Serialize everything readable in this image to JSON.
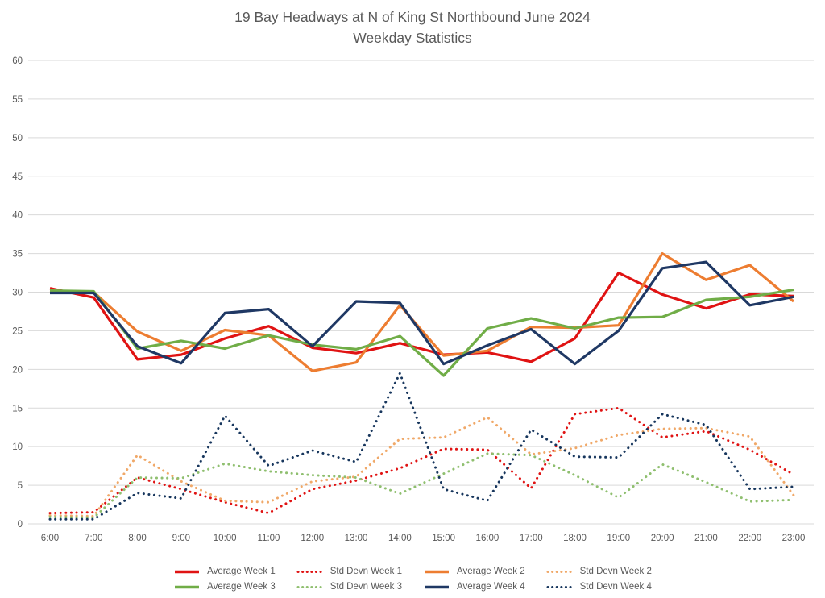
{
  "title": {
    "line1": "19 Bay Headways at N of King St Northbound June 2024",
    "line2": "Weekday Statistics"
  },
  "colors": {
    "week1_red": "#e01313",
    "week2_orange": "#ed7d31",
    "week3_green": "#70ad47",
    "week4_navy": "#1f3864",
    "gridline": "#d9d9d9",
    "axis_text": "#595959",
    "title_text": "#595959"
  },
  "chart_data": {
    "type": "line",
    "x": [
      "6:00",
      "7:00",
      "8:00",
      "9:00",
      "10:00",
      "11:00",
      "12:00",
      "13:00",
      "14:00",
      "15:00",
      "16:00",
      "17:00",
      "18:00",
      "19:00",
      "20:00",
      "21:00",
      "22:00",
      "23:00"
    ],
    "ylim": [
      0,
      60
    ],
    "ytick_step": 5,
    "yticks": [
      0,
      5,
      10,
      15,
      20,
      25,
      30,
      35,
      40,
      45,
      50,
      55,
      60
    ],
    "grid": true,
    "legend_position": "bottom",
    "legend_rows": [
      [
        "Average Week 1",
        "Std Devn Week 1",
        "Average Week 2",
        "Std Devn Week 2"
      ],
      [
        "Average Week 3",
        "Std Devn Week 3",
        "Average Week 4",
        "Std Devn Week 4"
      ]
    ],
    "series": [
      {
        "name": "Average Week 1",
        "color": "#e01313",
        "style": "solid",
        "values": [
          30.5,
          29.3,
          21.3,
          21.9,
          24.0,
          25.6,
          22.8,
          22.1,
          23.4,
          21.9,
          22.2,
          21.0,
          24.0,
          32.5,
          29.7,
          27.9,
          29.7,
          29.5
        ]
      },
      {
        "name": "Std Devn Week 1",
        "color": "#e01313",
        "style": "dotted",
        "values": [
          1.4,
          1.5,
          6.0,
          4.5,
          2.8,
          1.4,
          4.5,
          5.6,
          7.2,
          9.7,
          9.6,
          4.6,
          14.2,
          15.0,
          11.2,
          12.0,
          9.6,
          6.4
        ]
      },
      {
        "name": "Average Week 2",
        "color": "#ed7d31",
        "style": "solid",
        "values": [
          30.2,
          30.0,
          24.9,
          22.4,
          25.1,
          24.4,
          19.8,
          20.9,
          28.3,
          21.8,
          22.4,
          25.5,
          25.4,
          25.7,
          35.0,
          31.6,
          33.5,
          28.8
        ]
      },
      {
        "name": "Std Devn Week 2",
        "color": "#f0a868",
        "style": "dotted",
        "values": [
          1.1,
          1.0,
          8.9,
          5.5,
          3.0,
          2.8,
          5.5,
          6.1,
          11.0,
          11.2,
          13.8,
          9.0,
          9.8,
          11.5,
          12.3,
          12.4,
          11.3,
          3.7
        ]
      },
      {
        "name": "Average Week 3",
        "color": "#70ad47",
        "style": "solid",
        "values": [
          30.2,
          30.1,
          22.7,
          23.7,
          22.7,
          24.4,
          23.2,
          22.6,
          24.3,
          19.2,
          25.3,
          26.6,
          25.3,
          26.7,
          26.8,
          29.0,
          29.4,
          30.3
        ]
      },
      {
        "name": "Std Devn Week 3",
        "color": "#8fbf6f",
        "style": "dotted",
        "values": [
          0.9,
          0.8,
          6.0,
          5.9,
          7.8,
          6.8,
          6.3,
          6.0,
          3.9,
          6.5,
          9.1,
          8.9,
          6.3,
          3.4,
          7.7,
          5.4,
          2.9,
          3.1
        ]
      },
      {
        "name": "Average Week 4",
        "color": "#1f3864",
        "style": "solid",
        "values": [
          29.9,
          29.9,
          23.0,
          20.8,
          27.3,
          27.8,
          23.0,
          28.8,
          28.6,
          20.7,
          23.1,
          25.2,
          20.7,
          25.0,
          33.1,
          33.9,
          28.3,
          29.4
        ]
      },
      {
        "name": "Std Devn Week 4",
        "color": "#17365d",
        "style": "dotted",
        "values": [
          0.6,
          0.6,
          4.0,
          3.3,
          14.0,
          7.5,
          9.5,
          8.0,
          19.5,
          4.5,
          3.0,
          12.2,
          8.7,
          8.6,
          14.2,
          12.8,
          4.5,
          4.8
        ]
      }
    ]
  }
}
